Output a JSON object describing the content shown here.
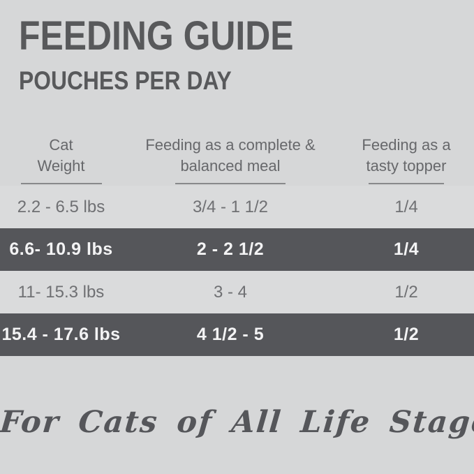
{
  "page": {
    "background_color": "#d6d7d8",
    "highlight_row_color": "#55565a",
    "light_row_color": "#dadbdc",
    "text_color": "#58595b"
  },
  "header": {
    "title": "FEEDING GUIDE",
    "subtitle": "POUCHES PER DAY"
  },
  "table": {
    "columns": [
      {
        "line1": "Cat",
        "line2": "Weight"
      },
      {
        "line1": "Feeding as a complete &",
        "line2": "balanced meal"
      },
      {
        "line1": "Feeding as a",
        "line2": "tasty topper"
      }
    ],
    "rows": [
      {
        "weight": "2.2 - 6.5 lbs",
        "meal": "3/4 - 1 1/2",
        "topper": "1/4",
        "highlighted": false
      },
      {
        "weight": "6.6- 10.9 lbs",
        "meal": "2 - 2 1/2",
        "topper": "1/4",
        "highlighted": true
      },
      {
        "weight": "11- 15.3 lbs",
        "meal": "3 - 4",
        "topper": "1/2",
        "highlighted": false
      },
      {
        "weight": "15.4 - 17.6 lbs",
        "meal": "4 1/2 - 5",
        "topper": "1/2",
        "highlighted": true
      }
    ]
  },
  "footer": {
    "tagline": "For Cats of All Life Stages"
  },
  "chart_data": {
    "type": "table",
    "title": "FEEDING GUIDE",
    "subtitle": "POUCHES PER DAY",
    "columns": [
      "Cat Weight",
      "Feeding as a complete & balanced meal",
      "Feeding as a tasty topper"
    ],
    "rows": [
      [
        "2.2 - 6.5 lbs",
        "3/4 - 1 1/2",
        "1/4"
      ],
      [
        "6.6- 10.9 lbs",
        "2 - 2 1/2",
        "1/4"
      ],
      [
        "11- 15.3 lbs",
        "3 - 4",
        "1/2"
      ],
      [
        "15.4 - 17.6 lbs",
        "4 1/2 - 5",
        "1/2"
      ]
    ],
    "highlighted_row_indices": [
      1,
      3
    ],
    "footnote": "For Cats of All Life Stages"
  }
}
